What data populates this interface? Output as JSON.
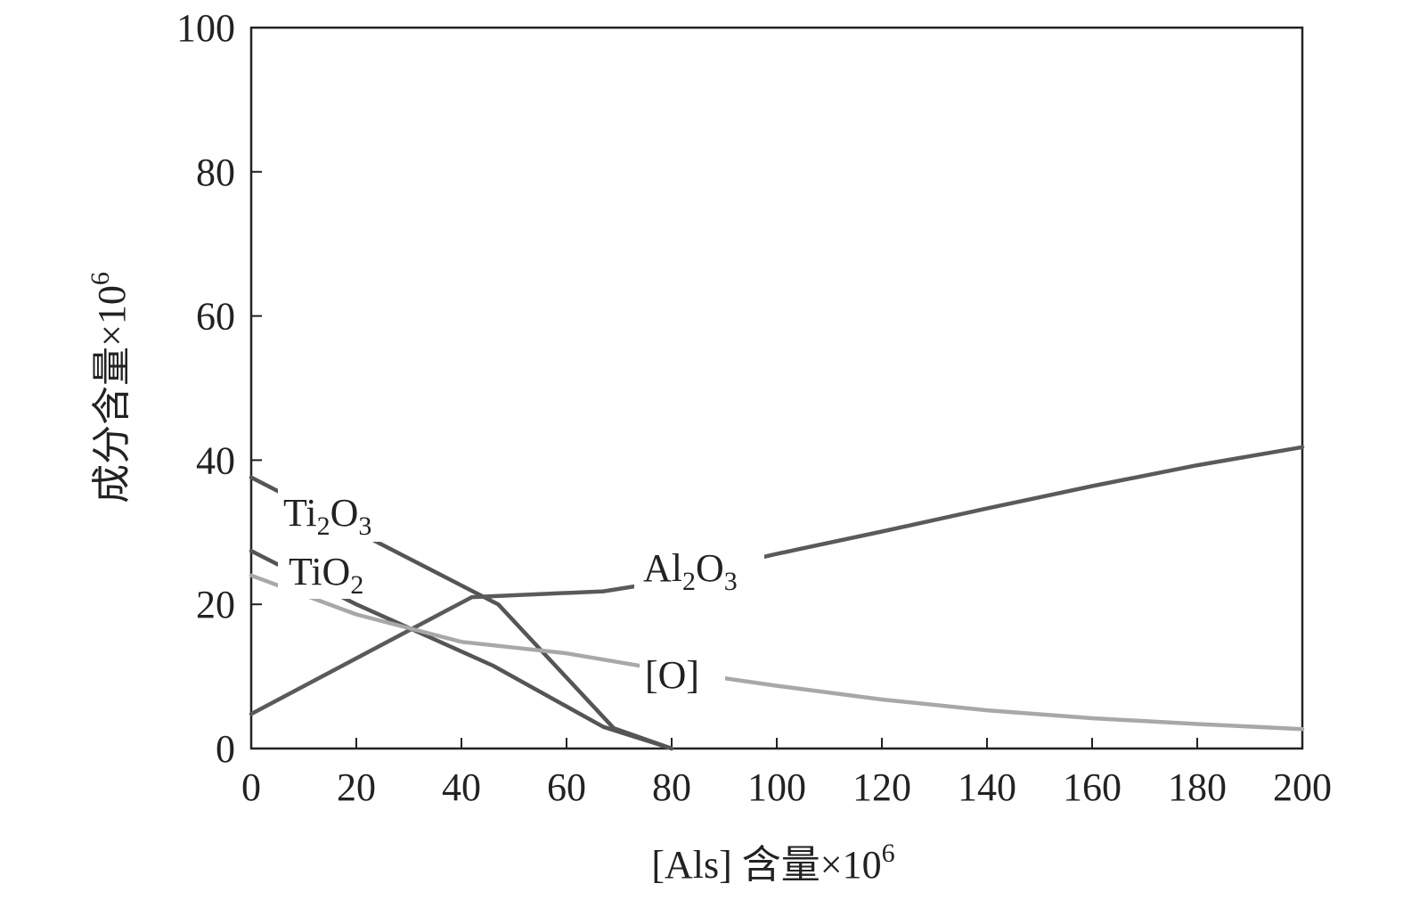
{
  "chart_data": {
    "type": "line",
    "xlabel_main": "[Als] 含量×10",
    "xlabel_sup": "6",
    "ylabel_main": "成分含量×10",
    "ylabel_sup": "6",
    "xlim": [
      0,
      200
    ],
    "ylim": [
      0,
      100
    ],
    "xticks": [
      0,
      20,
      40,
      60,
      80,
      100,
      120,
      140,
      160,
      180,
      200
    ],
    "yticks": [
      0,
      20,
      40,
      60,
      80,
      100
    ],
    "grid": false,
    "series": [
      {
        "name": "Ti2O3",
        "label_main": "Ti",
        "label_sub1": "2",
        "label_mid": "O",
        "label_sub2": "3",
        "color": "#555555",
        "x": [
          0,
          47,
          69,
          80
        ],
        "y": [
          37.6,
          20.0,
          2.8,
          0.0
        ]
      },
      {
        "name": "TiO2",
        "label_main": "TiO",
        "label_sub1": "2",
        "color": "#555555",
        "x": [
          0,
          20,
          46,
          67,
          80
        ],
        "y": [
          27.4,
          20.0,
          11.5,
          3.0,
          0.0
        ]
      },
      {
        "name": "Al2O3",
        "label_main": "Al",
        "label_sub1": "2",
        "label_mid": "O",
        "label_sub2": "3",
        "color": "#5a5a5a",
        "x": [
          0,
          42,
          67,
          73,
          100,
          120,
          140,
          160,
          180,
          200
        ],
        "y": [
          4.8,
          21.0,
          21.8,
          22.5,
          27.0,
          30.1,
          33.3,
          36.4,
          39.3,
          41.8
        ]
      },
      {
        "name": "[O]",
        "label_main": "[O]",
        "color": "#a8a8a8",
        "x": [
          0,
          20,
          40,
          60,
          73,
          80,
          100,
          120,
          140,
          160,
          180,
          200
        ],
        "y": [
          24.0,
          18.6,
          14.8,
          13.2,
          11.6,
          10.8,
          8.7,
          6.8,
          5.3,
          4.2,
          3.4,
          2.7
        ]
      }
    ]
  }
}
